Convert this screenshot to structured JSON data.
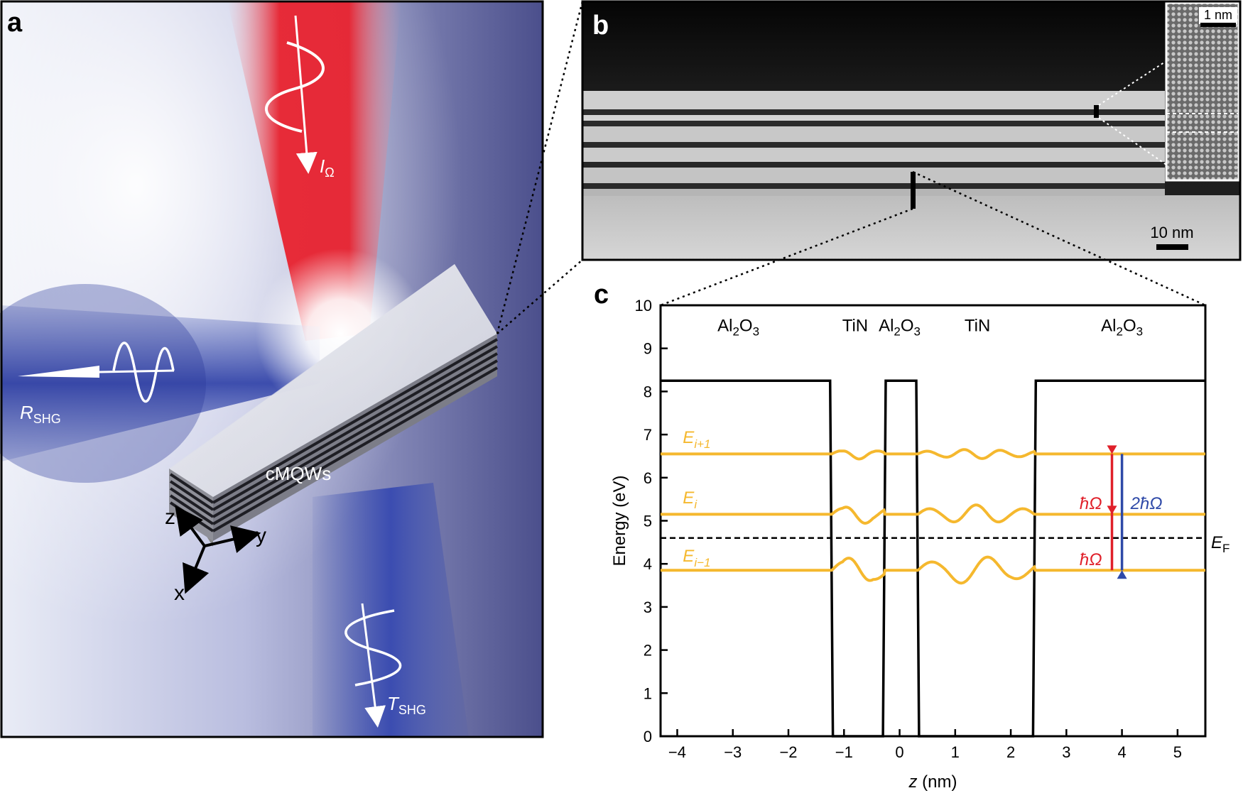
{
  "panel_a": {
    "label": "a",
    "structure_label": "cMQWs",
    "beam_in_label": "I",
    "beam_in_sub": "Ω",
    "reflect_label": "R",
    "reflect_sub": "SHG",
    "transmit_label": "T",
    "transmit_sub": "SHG",
    "axes": {
      "z": "z",
      "y": "y",
      "x": "x"
    },
    "colors": {
      "pump": "#e8222f",
      "shg": "#3a4fb0",
      "background": "#6b6fa8"
    }
  },
  "panel_b": {
    "label": "b",
    "scale_bar_main": "10 nm",
    "scale_bar_inset": "1 nm"
  },
  "chart_data": {
    "type": "line",
    "label": "c",
    "xlabel_italic": "z",
    "xlabel_rest": " (nm)",
    "ylabel": "Energy (eV)",
    "xlim": [
      -4.3,
      5.5
    ],
    "ylim": [
      0,
      10
    ],
    "xticks": [
      "−4",
      "−3",
      "−2",
      "−1",
      "0",
      "1",
      "2",
      "3",
      "4",
      "5"
    ],
    "yticks": [
      "0",
      "1",
      "2",
      "3",
      "4",
      "5",
      "6",
      "7",
      "8",
      "9",
      "10"
    ],
    "materials": [
      {
        "text": "Al",
        "sub": "2",
        "text2": "O",
        "sub2": "3",
        "x": -2.9
      },
      {
        "text": "TiN",
        "sub": "",
        "text2": "",
        "sub2": "",
        "x": -0.8
      },
      {
        "text": "Al",
        "sub": "2",
        "text2": "O",
        "sub2": "3",
        "x": 0.0
      },
      {
        "text": "TiN",
        "sub": "",
        "text2": "",
        "sub2": "",
        "x": 1.4
      },
      {
        "text": "Al",
        "sub": "2",
        "text2": "O",
        "sub2": "3",
        "x": 4.0
      }
    ],
    "potential": {
      "x": [
        -4.3,
        -1.25,
        -1.2,
        -0.3,
        -0.25,
        0.3,
        0.35,
        2.4,
        2.45,
        5.5
      ],
      "y": [
        8.25,
        8.25,
        0,
        0,
        8.25,
        8.25,
        0,
        0,
        8.25,
        8.25
      ]
    },
    "fermi_level": {
      "y": 4.6,
      "label": "E",
      "sub": "F"
    },
    "levels": [
      {
        "name": "E",
        "sub": "i+1",
        "baseline": 6.55,
        "label_y": 6.8
      },
      {
        "name": "E",
        "sub": "i",
        "baseline": 5.15,
        "label_y": 5.4
      },
      {
        "name": "E",
        "sub": "i−1",
        "baseline": 3.85,
        "label_y": 4.05
      }
    ],
    "transitions": {
      "photon_label": "ħΩ",
      "shg_label": "2ħΩ",
      "photon_x": 3.82,
      "shg_x": 4.0
    },
    "colors": {
      "levels": "#f5b82e",
      "photon": "#e0202a",
      "shg": "#2f4aa8",
      "potential": "#000000"
    }
  }
}
